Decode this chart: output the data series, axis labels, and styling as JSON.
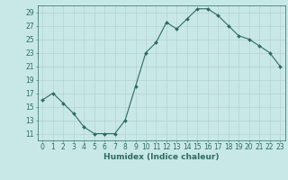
{
  "x": [
    0,
    1,
    2,
    3,
    4,
    5,
    6,
    7,
    8,
    9,
    10,
    11,
    12,
    13,
    14,
    15,
    16,
    17,
    18,
    19,
    20,
    21,
    22,
    23
  ],
  "y": [
    16,
    17,
    15.5,
    14,
    12,
    11,
    11,
    11,
    13,
    18,
    23,
    24.5,
    27.5,
    26.5,
    28,
    29.5,
    29.5,
    28.5,
    27,
    25.5,
    25,
    24,
    23,
    21
  ],
  "line_color": "#2e6b5e",
  "marker": "D",
  "marker_size": 2,
  "bg_color": "#c8e8e8",
  "grid_color": "#b8d0d0",
  "xlabel": "Humidex (Indice chaleur)",
  "xlim": [
    -0.5,
    23.5
  ],
  "ylim": [
    10,
    30
  ],
  "yticks": [
    11,
    13,
    15,
    17,
    19,
    21,
    23,
    25,
    27,
    29
  ],
  "xticks": [
    0,
    1,
    2,
    3,
    4,
    5,
    6,
    7,
    8,
    9,
    10,
    11,
    12,
    13,
    14,
    15,
    16,
    17,
    18,
    19,
    20,
    21,
    22,
    23
  ],
  "tick_color": "#2e6b5e",
  "label_fontsize": 6.5,
  "tick_fontsize": 5.5
}
